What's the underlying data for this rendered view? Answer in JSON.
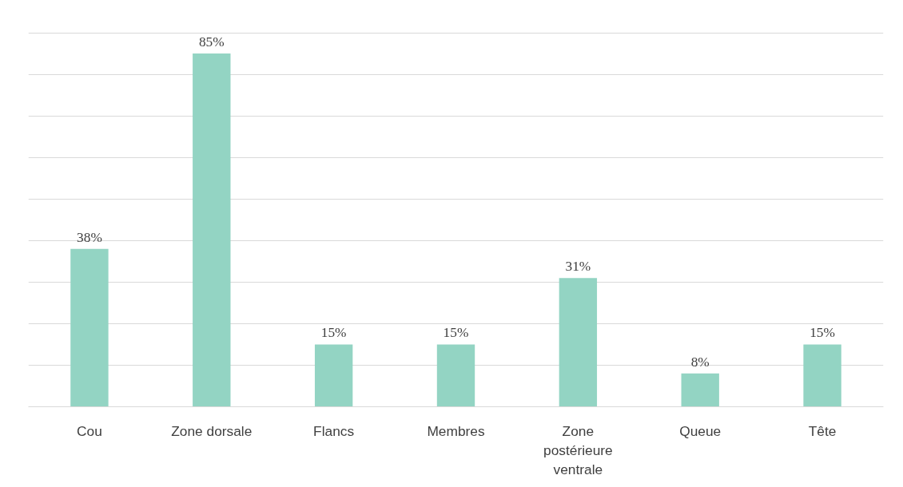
{
  "chart_data": {
    "type": "bar",
    "categories": [
      "Cou",
      "Zone dorsale",
      "Flancs",
      "Membres",
      "Zone postérieure ventrale",
      "Queue",
      "Tête"
    ],
    "values": [
      38,
      85,
      15,
      15,
      31,
      8,
      15
    ],
    "value_labels": [
      "38%",
      "85%",
      "15%",
      "15%",
      "31%",
      "8%",
      "15%"
    ],
    "color": "#93d4c3",
    "grid": "y",
    "tick_labels": "x"
  }
}
